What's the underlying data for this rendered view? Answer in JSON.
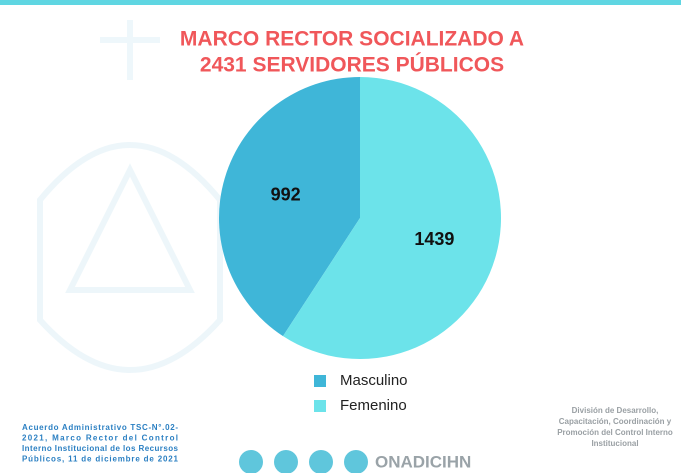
{
  "chart_data": {
    "type": "pie",
    "title": [
      "MARCO RECTOR SOCIALIZADO A",
      "2431 SERVIDORES PÚBLICOS"
    ],
    "categories": [
      "Masculino",
      "Femenino"
    ],
    "values": [
      992,
      1439
    ],
    "colors": [
      "#3fb6d8",
      "#6ce3ea"
    ],
    "legend": "bottom"
  },
  "footer": {
    "left": [
      "Acuerdo Administrativo TSC-N°.02-",
      "2021, Marco Rector del Control",
      "Interno Institucional de los Recursos",
      "Públicos, 11 de diciembre de 2021"
    ],
    "right": [
      "División de Desarrollo,",
      "Capacitación, Coordinación y",
      "Promoción del Control Interno",
      "Institucional"
    ],
    "brand": "ONADICIHN"
  }
}
